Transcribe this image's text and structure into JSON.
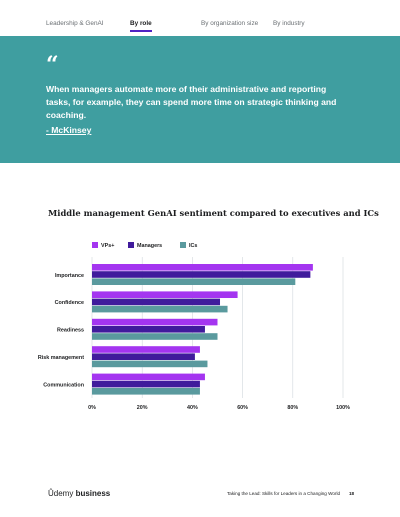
{
  "nav": {
    "tabs": [
      {
        "label": "Leadership & GenAI",
        "active": false
      },
      {
        "label": "By role",
        "active": true
      },
      {
        "label": "By organization size",
        "active": false
      },
      {
        "label": "By industry",
        "active": false
      }
    ]
  },
  "quote": {
    "mark": "“",
    "text": "When managers automate more of their administrative and reporting tasks, for example, they can spend more time on strategic thinking and coaching.",
    "author": "- McKinsey"
  },
  "colors": {
    "accent_teal": "#3f9ea0",
    "vps": "#a435f0",
    "managers": "#401b9c",
    "ics": "#5a9a9e"
  },
  "chart_data": {
    "type": "bar",
    "orientation": "horizontal",
    "title": "Middle management GenAI sentiment compared to executives and ICs",
    "categories": [
      "Importance",
      "Confidence",
      "Readiness",
      "Risk management",
      "Communication"
    ],
    "series": [
      {
        "name": "VPs+",
        "color": "#a435f0",
        "values": [
          88,
          58,
          50,
          43,
          45
        ]
      },
      {
        "name": "Managers",
        "color": "#401b9c",
        "values": [
          87,
          51,
          45,
          41,
          43
        ]
      },
      {
        "name": "ICs",
        "color": "#5a9a9e",
        "values": [
          81,
          54,
          50,
          46,
          43
        ]
      }
    ],
    "xlim": [
      0,
      100
    ],
    "xticks": [
      "0%",
      "20%",
      "40%",
      "60%",
      "80%",
      "100%"
    ],
    "grid": true,
    "legend_position": "top-left"
  },
  "footer": {
    "logo_prefix": "Ûdemy",
    "logo_brand": "business",
    "text": "Taking the Lead: Skills for Leaders in a Changing World",
    "page": "18"
  }
}
